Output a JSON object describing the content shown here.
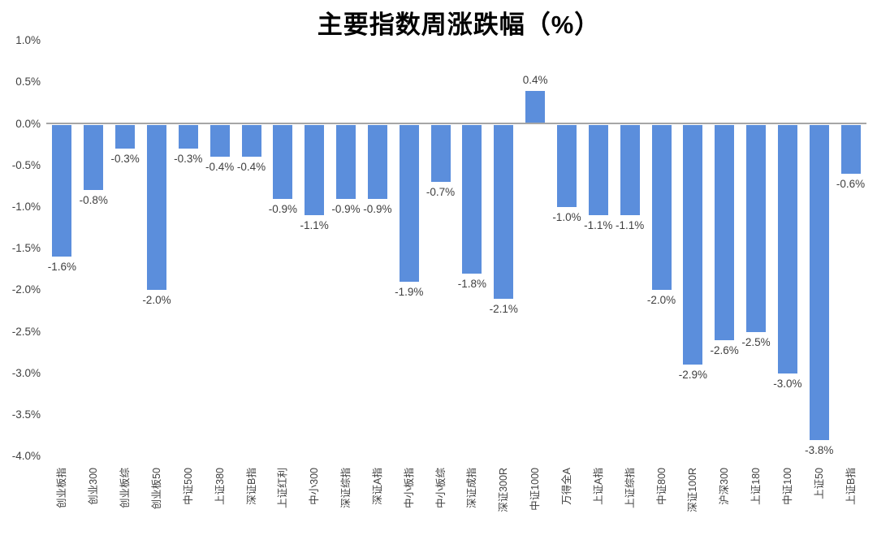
{
  "chart_data": {
    "type": "bar",
    "title": "主要指数周涨跌幅（%）",
    "categories": [
      "创业板指",
      "创业300",
      "创业板综",
      "创业板50",
      "中证500",
      "上证380",
      "深证B指",
      "上证红利",
      "中小300",
      "深证综指",
      "深证A指",
      "中小板指",
      "中小板综",
      "深证成指",
      "深证300R",
      "中证1000",
      "万得全A",
      "上证A指",
      "上证综指",
      "中证800",
      "深证100R",
      "沪深300",
      "上证180",
      "中证100",
      "上证50",
      "上证B指"
    ],
    "values": [
      -1.6,
      -0.8,
      -0.3,
      -2.0,
      -0.3,
      -0.4,
      -0.4,
      -0.9,
      -1.1,
      -0.9,
      -0.9,
      -1.9,
      -0.7,
      -1.8,
      -2.1,
      0.4,
      -1.0,
      -1.1,
      -1.1,
      -2.0,
      -2.9,
      -2.6,
      -2.5,
      -3.0,
      -3.8,
      -0.6
    ],
    "data_labels": [
      "-1.6%",
      "-0.8%",
      "-0.3%",
      "-2.0%",
      "-0.3%",
      "-0.4%",
      "-0.4%",
      "-0.9%",
      "-1.1%",
      "-0.9%",
      "-0.9%",
      "-1.9%",
      "-0.7%",
      "-1.8%",
      "-2.1%",
      "0.4%",
      "-1.0%",
      "-1.1%",
      "-1.1%",
      "-2.0%",
      "-2.9%",
      "-2.6%",
      "-2.5%",
      "-3.0%",
      "-3.8%",
      "-0.6%"
    ],
    "xlabel": "",
    "ylabel": "",
    "y_ticks": [
      "1.0%",
      "0.5%",
      "0.0%",
      "-0.5%",
      "-1.0%",
      "-1.5%",
      "-2.0%",
      "-2.5%",
      "-3.0%",
      "-3.5%",
      "-4.0%"
    ],
    "y_tick_values": [
      1.0,
      0.5,
      0.0,
      -0.5,
      -1.0,
      -1.5,
      -2.0,
      -2.5,
      -3.0,
      -3.5,
      -4.0
    ],
    "ylim": [
      -4.0,
      1.0
    ],
    "y_tick_interval": 0.5,
    "grid": "off",
    "legend": "none",
    "bar_color": "#5B8EDC",
    "axis_line_color": "#A6A6A6",
    "label_color": "#3F3F3F",
    "title_color": "#000000",
    "background_color": "#FFFFFF"
  }
}
